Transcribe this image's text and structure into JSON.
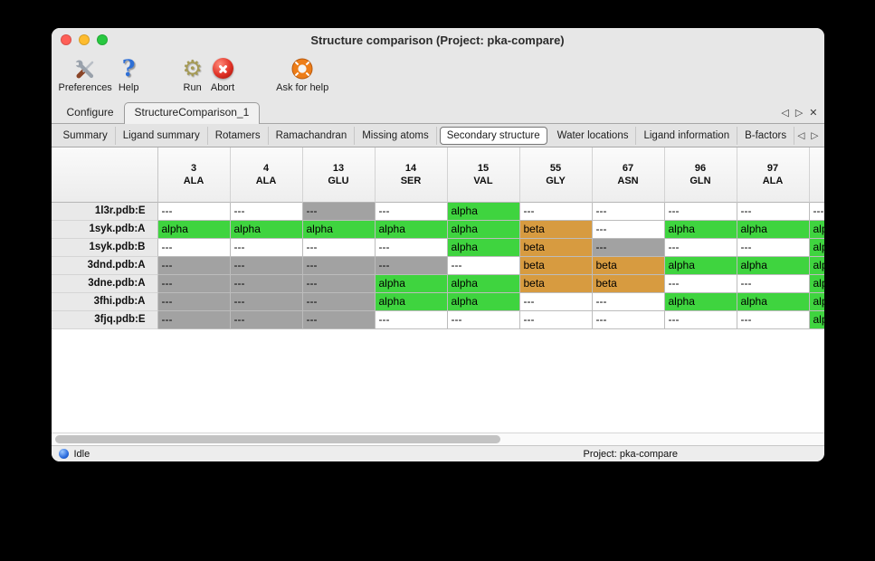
{
  "window": {
    "title": "Structure comparison (Project: pka-compare)"
  },
  "toolbar": {
    "items": [
      {
        "label": "Preferences"
      },
      {
        "label": "Help"
      },
      {
        "label": "Run"
      },
      {
        "label": "Abort"
      },
      {
        "label": "Ask for help"
      }
    ]
  },
  "tabbar": {
    "tabs": [
      {
        "label": "Configure"
      },
      {
        "label": "StructureComparison_1"
      }
    ],
    "prev": "◁",
    "next": "▷",
    "close": "✕"
  },
  "subtabs": {
    "items": [
      "Summary",
      "Ligand summary",
      "Rotamers",
      "Ramachandran",
      "Missing atoms",
      "Secondary structure",
      "Water locations",
      "Ligand information",
      "B-factors"
    ],
    "selected": "Secondary structure",
    "prev": "◁",
    "next": "▷"
  },
  "colors": {
    "white": "#ffffff",
    "gray": "#a2a2a2",
    "green": "#3fd43f",
    "orange": "#d79b40"
  },
  "table": {
    "columns": [
      {
        "num": "3",
        "res": "ALA"
      },
      {
        "num": "4",
        "res": "ALA"
      },
      {
        "num": "13",
        "res": "GLU"
      },
      {
        "num": "14",
        "res": "SER"
      },
      {
        "num": "15",
        "res": "VAL"
      },
      {
        "num": "55",
        "res": "GLY"
      },
      {
        "num": "67",
        "res": "ASN"
      },
      {
        "num": "96",
        "res": "GLN"
      },
      {
        "num": "97",
        "res": "ALA"
      },
      {
        "num": "",
        "res": ""
      }
    ],
    "rows": [
      {
        "label": "1l3r.pdb:E",
        "cells": [
          {
            "text": "---",
            "bg": "white"
          },
          {
            "text": "---",
            "bg": "white"
          },
          {
            "text": "---",
            "bg": "gray"
          },
          {
            "text": "---",
            "bg": "white"
          },
          {
            "text": "alpha",
            "bg": "green"
          },
          {
            "text": "---",
            "bg": "white"
          },
          {
            "text": "---",
            "bg": "white"
          },
          {
            "text": "---",
            "bg": "white"
          },
          {
            "text": "---",
            "bg": "white"
          },
          {
            "text": "---",
            "bg": "white"
          }
        ]
      },
      {
        "label": "1syk.pdb:A",
        "cells": [
          {
            "text": "alpha",
            "bg": "green"
          },
          {
            "text": "alpha",
            "bg": "green"
          },
          {
            "text": "alpha",
            "bg": "green"
          },
          {
            "text": "alpha",
            "bg": "green"
          },
          {
            "text": "alpha",
            "bg": "green"
          },
          {
            "text": "beta",
            "bg": "orange"
          },
          {
            "text": "---",
            "bg": "white"
          },
          {
            "text": "alpha",
            "bg": "green"
          },
          {
            "text": "alpha",
            "bg": "green"
          },
          {
            "text": "alpha",
            "bg": "green"
          }
        ]
      },
      {
        "label": "1syk.pdb:B",
        "cells": [
          {
            "text": "---",
            "bg": "white"
          },
          {
            "text": "---",
            "bg": "white"
          },
          {
            "text": "---",
            "bg": "white"
          },
          {
            "text": "---",
            "bg": "white"
          },
          {
            "text": "alpha",
            "bg": "green"
          },
          {
            "text": "beta",
            "bg": "orange"
          },
          {
            "text": "---",
            "bg": "gray"
          },
          {
            "text": "---",
            "bg": "white"
          },
          {
            "text": "---",
            "bg": "white"
          },
          {
            "text": "alpha",
            "bg": "green"
          }
        ]
      },
      {
        "label": "3dnd.pdb:A",
        "cells": [
          {
            "text": "---",
            "bg": "gray"
          },
          {
            "text": "---",
            "bg": "gray"
          },
          {
            "text": "---",
            "bg": "gray"
          },
          {
            "text": "---",
            "bg": "gray"
          },
          {
            "text": "---",
            "bg": "white"
          },
          {
            "text": "beta",
            "bg": "orange"
          },
          {
            "text": "beta",
            "bg": "orange"
          },
          {
            "text": "alpha",
            "bg": "green"
          },
          {
            "text": "alpha",
            "bg": "green"
          },
          {
            "text": "alpha",
            "bg": "green"
          }
        ]
      },
      {
        "label": "3dne.pdb:A",
        "cells": [
          {
            "text": "---",
            "bg": "gray"
          },
          {
            "text": "---",
            "bg": "gray"
          },
          {
            "text": "---",
            "bg": "gray"
          },
          {
            "text": "alpha",
            "bg": "green"
          },
          {
            "text": "alpha",
            "bg": "green"
          },
          {
            "text": "beta",
            "bg": "orange"
          },
          {
            "text": "beta",
            "bg": "orange"
          },
          {
            "text": "---",
            "bg": "white"
          },
          {
            "text": "---",
            "bg": "white"
          },
          {
            "text": "alpha",
            "bg": "green"
          }
        ]
      },
      {
        "label": "3fhi.pdb:A",
        "cells": [
          {
            "text": "---",
            "bg": "gray"
          },
          {
            "text": "---",
            "bg": "gray"
          },
          {
            "text": "---",
            "bg": "gray"
          },
          {
            "text": "alpha",
            "bg": "green"
          },
          {
            "text": "alpha",
            "bg": "green"
          },
          {
            "text": "---",
            "bg": "white"
          },
          {
            "text": "---",
            "bg": "white"
          },
          {
            "text": "alpha",
            "bg": "green"
          },
          {
            "text": "alpha",
            "bg": "green"
          },
          {
            "text": "alpha",
            "bg": "green"
          }
        ]
      },
      {
        "label": "3fjq.pdb:E",
        "cells": [
          {
            "text": "---",
            "bg": "gray"
          },
          {
            "text": "---",
            "bg": "gray"
          },
          {
            "text": "---",
            "bg": "gray"
          },
          {
            "text": "---",
            "bg": "white"
          },
          {
            "text": "---",
            "bg": "white"
          },
          {
            "text": "---",
            "bg": "white"
          },
          {
            "text": "---",
            "bg": "white"
          },
          {
            "text": "---",
            "bg": "white"
          },
          {
            "text": "---",
            "bg": "white"
          },
          {
            "text": "alpha",
            "bg": "green"
          }
        ]
      }
    ]
  },
  "statusbar": {
    "status": "Idle",
    "project": "Project: pka-compare"
  }
}
